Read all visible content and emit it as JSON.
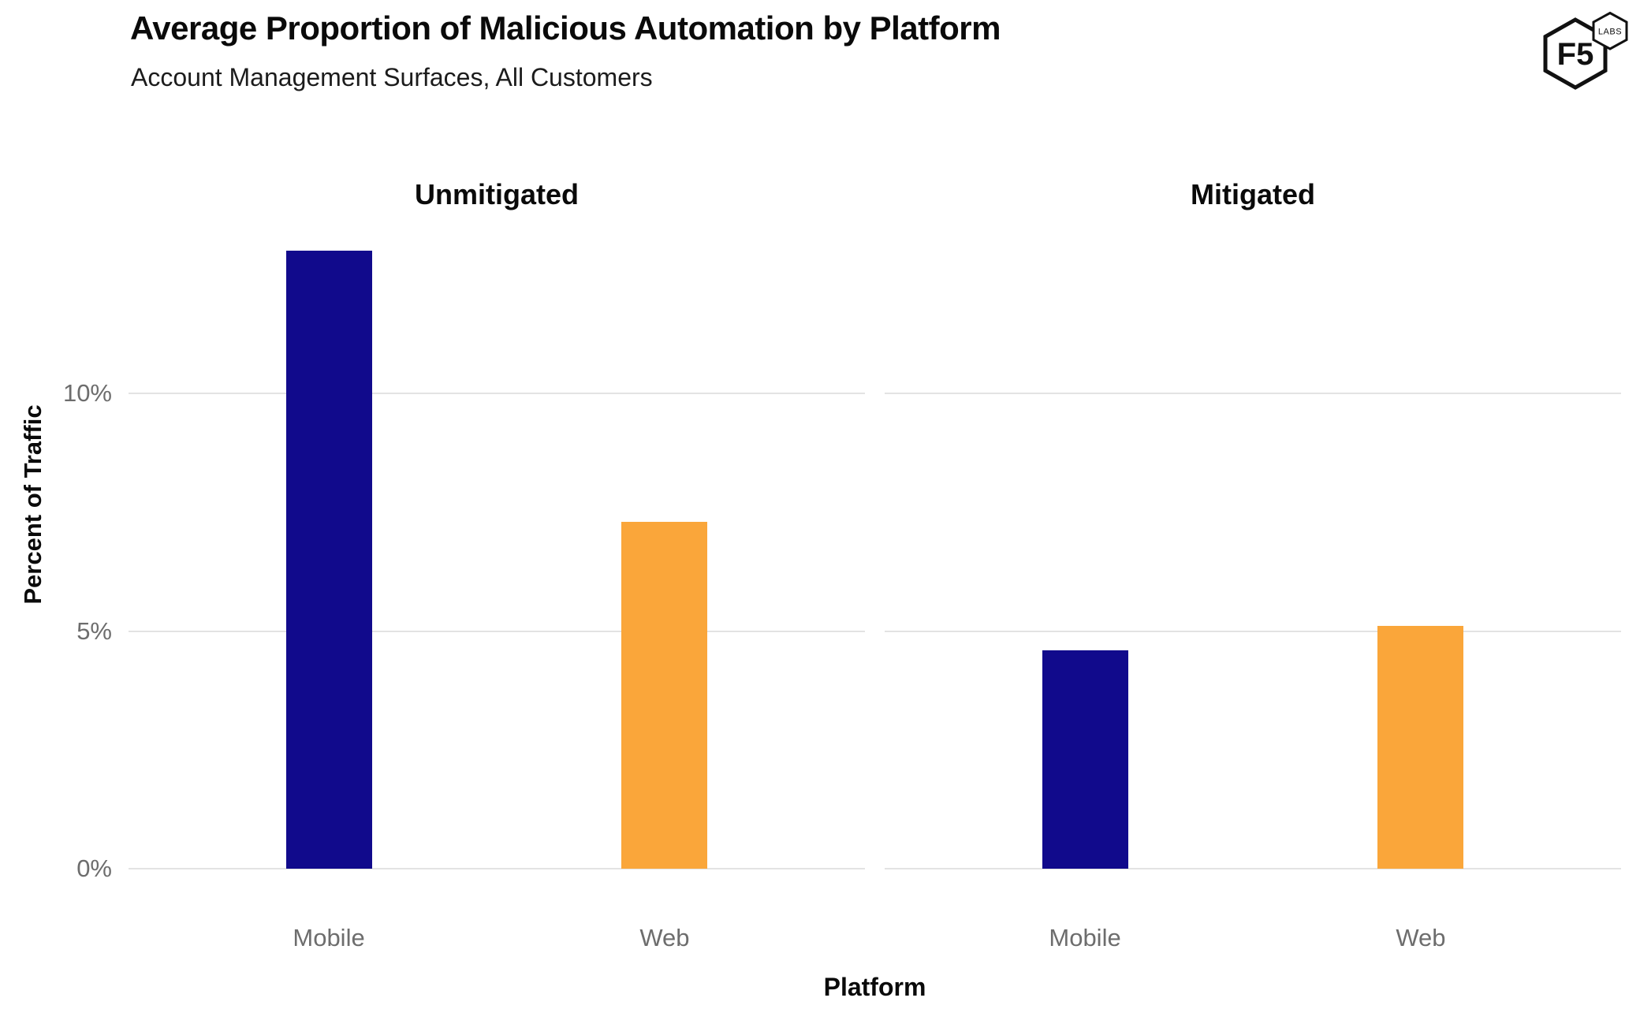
{
  "logo": {
    "primary": "F5",
    "secondary": "LABS"
  },
  "chart_data": {
    "type": "bar",
    "title": "Average Proportion of Malicious Automation by Platform",
    "subtitle": "Account Management Surfaces, All Customers",
    "xlabel": "Platform",
    "ylabel": "Percent of Traffic",
    "ylim": [
      0,
      13.3
    ],
    "grid": "horizontal-only",
    "legend": "none",
    "yticks": {
      "labels": [
        "10%",
        "5%",
        "0%"
      ],
      "values": [
        10,
        5,
        0
      ]
    },
    "facets": [
      {
        "label": "Unmitigated",
        "categories": [
          "Mobile",
          "Web"
        ],
        "values": [
          13.0,
          7.3
        ]
      },
      {
        "label": "Mitigated",
        "categories": [
          "Mobile",
          "Web"
        ],
        "values": [
          4.6,
          5.1
        ]
      }
    ],
    "bar_colors": {
      "Mobile": "#110a8c",
      "Web": "#faa63a"
    }
  }
}
